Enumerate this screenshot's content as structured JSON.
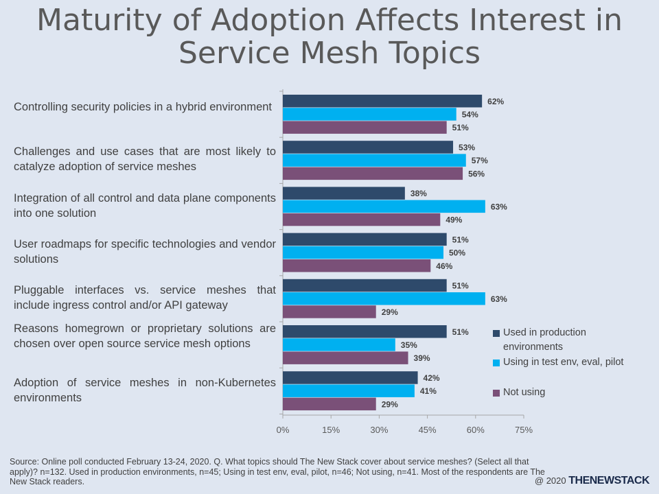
{
  "title": "Maturity of Adoption Affects Interest in Service Mesh Topics",
  "source": "Source: Online poll conducted February 13-24, 2020. Q. What topics should The New Stack cover about service meshes? (Select all that apply)? n=132. Used in production environments, n=45; Using in test env, eval, pilot, n=46; Not using, n=41. Most of the respondents are The New Stack readers.",
  "footer": {
    "copyright": "@ 2020",
    "brand": "THENEWSTACK"
  },
  "chart_data": {
    "type": "bar",
    "orientation": "horizontal",
    "title": "Maturity of Adoption Affects Interest in Service Mesh Topics",
    "categories": [
      "Controlling security policies in a hybrid environment",
      "Challenges and use cases that are most likely to catalyze adoption of service meshes",
      "Integration of all control and data plane components into one solution",
      "User roadmaps for specific technologies and vendor solutions",
      "Pluggable interfaces vs. service meshes that include ingress control and/or API gateway",
      "Reasons  homegrown or proprietary solutions are chosen over open source service mesh options",
      "Adoption of service meshes in non-Kubernetes environments"
    ],
    "series": [
      {
        "name": "Used in production environments",
        "color": "#2e4a6b",
        "values": [
          62,
          53,
          38,
          51,
          51,
          51,
          42
        ]
      },
      {
        "name": "Using in test env, eval, pilot",
        "color": "#00b0f0",
        "values": [
          54,
          57,
          63,
          50,
          63,
          35,
          41
        ]
      },
      {
        "name": "Not using",
        "color": "#7a5078",
        "values": [
          51,
          56,
          49,
          46,
          29,
          39,
          29
        ]
      }
    ],
    "value_suffix": "%",
    "xlim": [
      0,
      75
    ],
    "xticks": [
      "0%",
      "15%",
      "30%",
      "45%",
      "60%",
      "75%"
    ],
    "xtick_values": [
      0,
      15,
      30,
      45,
      60,
      75
    ],
    "grid": false,
    "legend_position": "right"
  }
}
